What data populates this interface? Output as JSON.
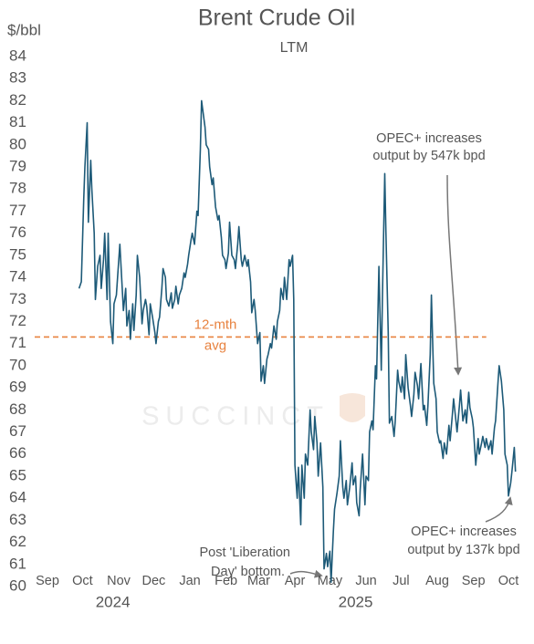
{
  "chart_data": {
    "type": "line",
    "title": "Brent Crude Oil",
    "subtitle": "LTM",
    "y_label": "$/bbl",
    "watermark": "SUCCINCT",
    "xlim": [
      -11,
      413
    ],
    "xticks": [
      {
        "value": 0,
        "label": "Sep"
      },
      {
        "value": 30,
        "label": "Oct"
      },
      {
        "value": 61,
        "label": "Nov"
      },
      {
        "value": 91,
        "label": "Dec"
      },
      {
        "value": 122,
        "label": "Jan"
      },
      {
        "value": 153,
        "label": "Feb"
      },
      {
        "value": 181,
        "label": "Mar"
      },
      {
        "value": 212,
        "label": "Apr"
      },
      {
        "value": 242,
        "label": "May"
      },
      {
        "value": 273,
        "label": "Jun"
      },
      {
        "value": 303,
        "label": "Jul"
      },
      {
        "value": 334,
        "label": "Aug"
      },
      {
        "value": 365,
        "label": "Sep"
      },
      {
        "value": 395,
        "label": "Oct"
      }
    ],
    "x_group_labels": [
      {
        "value": 56,
        "label": "2024"
      },
      {
        "value": 264,
        "label": "2025"
      }
    ],
    "ylim": [
      60,
      84
    ],
    "yticks": [
      60,
      61,
      62,
      63,
      64,
      65,
      66,
      67,
      68,
      69,
      70,
      71,
      72,
      73,
      74,
      75,
      76,
      77,
      78,
      79,
      80,
      81,
      82,
      83,
      84
    ],
    "reference_line": {
      "value": 71.3,
      "label": [
        "12-mth",
        "avg"
      ],
      "color": "#e8823f",
      "x_end": 376
    },
    "annotations": [
      {
        "lines": [
          "OPEC+ increases",
          "output by 547k bpd"
        ]
      },
      {
        "lines": [
          "OPEC+ increases",
          "output by 137k bpd"
        ]
      },
      {
        "lines": [
          "Post 'Liberation",
          "Day' bottom."
        ]
      }
    ],
    "series": [
      {
        "name": "Brent",
        "color": "#1d5a78",
        "x": [
          27,
          29,
          31,
          32,
          34,
          35,
          37,
          38,
          40,
          41,
          43,
          45,
          46,
          48,
          49,
          51,
          52,
          54,
          56,
          57,
          59,
          60,
          62,
          63,
          65,
          67,
          68,
          70,
          71,
          73,
          74,
          76,
          77,
          79,
          81,
          82,
          84,
          85,
          87,
          88,
          90,
          92,
          93,
          95,
          96,
          98,
          99,
          101,
          102,
          104,
          106,
          107,
          109,
          110,
          112,
          113,
          115,
          117,
          118,
          120,
          121,
          123,
          124,
          126,
          128,
          129,
          131,
          132,
          135,
          136,
          138,
          139,
          141,
          142,
          144,
          146,
          147,
          149,
          150,
          152,
          153,
          155,
          156,
          158,
          160,
          161,
          163,
          164,
          166,
          167,
          169,
          171,
          172,
          174,
          175,
          177,
          178,
          180,
          182,
          183,
          185,
          186,
          188,
          189,
          191,
          192,
          194,
          196,
          197,
          199,
          200,
          202,
          203,
          205,
          207,
          208,
          210,
          211,
          212,
          214,
          215,
          217,
          218,
          220,
          221,
          223,
          225,
          226,
          228,
          229,
          231,
          232,
          234,
          236,
          237,
          239,
          240,
          242,
          243,
          245,
          246,
          248,
          250,
          251,
          253,
          254,
          256,
          257,
          259,
          261,
          262,
          264,
          265,
          267,
          268,
          270,
          272,
          273,
          275,
          276,
          278,
          279,
          281,
          282,
          284,
          286,
          287,
          289,
          290,
          292,
          293,
          295,
          297,
          298,
          300,
          301,
          303,
          304,
          306,
          307,
          309,
          311,
          312,
          314,
          315,
          317,
          318,
          320,
          322,
          323,
          325,
          326,
          328,
          329,
          331,
          333,
          334,
          336,
          337,
          339,
          340,
          342,
          344,
          345,
          347,
          348,
          350,
          351,
          353,
          354,
          356,
          358,
          359,
          361,
          362,
          364,
          365,
          367,
          369,
          370,
          372,
          373,
          375,
          376,
          378,
          380,
          381,
          383,
          384,
          386,
          387,
          389,
          391,
          392,
          394,
          395,
          397,
          398,
          400,
          401
        ],
        "values": [
          73.5,
          73.8,
          77.5,
          79,
          81,
          76.5,
          79.3,
          78,
          76,
          73,
          74.5,
          75,
          73.5,
          74.8,
          76,
          73,
          76,
          72,
          71,
          72.8,
          73.2,
          74,
          75.5,
          74.5,
          72.5,
          73.5,
          71.8,
          72.5,
          71.2,
          72.8,
          71.6,
          73.2,
          75,
          74,
          71.9,
          72.5,
          73,
          72.7,
          71.4,
          72.8,
          72.2,
          71.5,
          71,
          72,
          72.2,
          73.5,
          74.4,
          74,
          73,
          72.7,
          73.3,
          72.6,
          73,
          73.6,
          72.8,
          73.2,
          73.5,
          74.2,
          74,
          74.6,
          75,
          75.7,
          76,
          75.5,
          77,
          76.8,
          79.8,
          82,
          80.8,
          80,
          79.8,
          79,
          78.2,
          78.5,
          77.2,
          76.6,
          76.8,
          75.8,
          75,
          74.8,
          74.4,
          75.1,
          76.5,
          75,
          74.8,
          74.4,
          75.5,
          76.3,
          74.8,
          74.5,
          75,
          74.5,
          74.8,
          73.8,
          72.4,
          73,
          72.5,
          71,
          71.5,
          69.3,
          70,
          69.2,
          70.3,
          70.5,
          71,
          70.8,
          71.8,
          71.2,
          72,
          72.5,
          73.5,
          73,
          74,
          73,
          74.8,
          74.5,
          75,
          73,
          65.5,
          64,
          65.4,
          62.8,
          65.5,
          64,
          66,
          65.5,
          68,
          67,
          66.2,
          67.7,
          66.5,
          65,
          66.5,
          64.5,
          60.8,
          61.5,
          60.9,
          61.6,
          60.2,
          62.5,
          63.5,
          64.2,
          65,
          66.6,
          64.5,
          64,
          64.8,
          63.7,
          64.5,
          65.6,
          64.6,
          65,
          63.8,
          63.2,
          64.4,
          66,
          63.7,
          65,
          64.8,
          67,
          67.5,
          67.1,
          70,
          69.4,
          74.5,
          69.8,
          73,
          78.7,
          76,
          71.5,
          67.4,
          67.7,
          66.8,
          67.5,
          69.8,
          69.3,
          68.8,
          69.5,
          68.5,
          70.5,
          69,
          68.2,
          67.7,
          68.7,
          69.7,
          69.1,
          68.5,
          70.1,
          68,
          68.2,
          67.3,
          68.2,
          70.5,
          73.2,
          69.2,
          68.5,
          67,
          66.5,
          66.6,
          65.8,
          66.5,
          66,
          67.3,
          66.6,
          67.8,
          68.5,
          67.5,
          67,
          68.2,
          68.9,
          67.5,
          68,
          67.4,
          68.8,
          68.1,
          67.6,
          67.2,
          65.5,
          66.7,
          66,
          66.5,
          66.8,
          66.3,
          66.7,
          66.2,
          66.6,
          66,
          67.2,
          67.5,
          69.2,
          70,
          69.3,
          68,
          66,
          65.5,
          64.1,
          64.7,
          65.2,
          66.3,
          65.2
        ]
      }
    ]
  }
}
